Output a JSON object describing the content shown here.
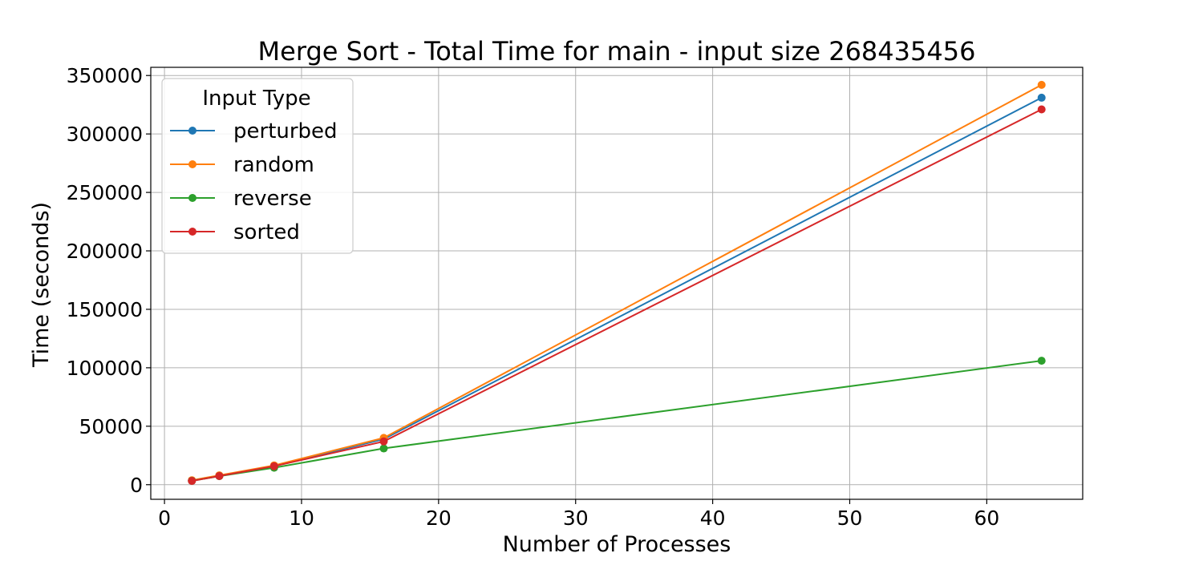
{
  "chart_data": {
    "type": "line",
    "title": "Merge Sort - Total Time for main - input size 268435456",
    "xlabel": "Number of Processes",
    "ylabel": "Time (seconds)",
    "xlim": [
      -1,
      67
    ],
    "ylim": [
      -12500,
      357000
    ],
    "xticks": [
      0,
      10,
      20,
      30,
      40,
      50,
      60
    ],
    "yticks": [
      0,
      50000,
      100000,
      150000,
      200000,
      250000,
      300000,
      350000
    ],
    "grid": true,
    "legend": {
      "title": "Input Type",
      "placement": "top-left"
    },
    "x": [
      2,
      4,
      8,
      16,
      64
    ],
    "series": [
      {
        "name": "perturbed",
        "color": "#1f77b4",
        "values": [
          3500,
          7800,
          16000,
          39000,
          331000
        ]
      },
      {
        "name": "random",
        "color": "#ff7f0e",
        "values": [
          3800,
          8000,
          16500,
          40000,
          342000
        ]
      },
      {
        "name": "reverse",
        "color": "#2ca02c",
        "values": [
          3300,
          7300,
          14500,
          31000,
          106000
        ]
      },
      {
        "name": "sorted",
        "color": "#d62728",
        "values": [
          3200,
          7400,
          15800,
          37000,
          321000
        ]
      }
    ]
  }
}
